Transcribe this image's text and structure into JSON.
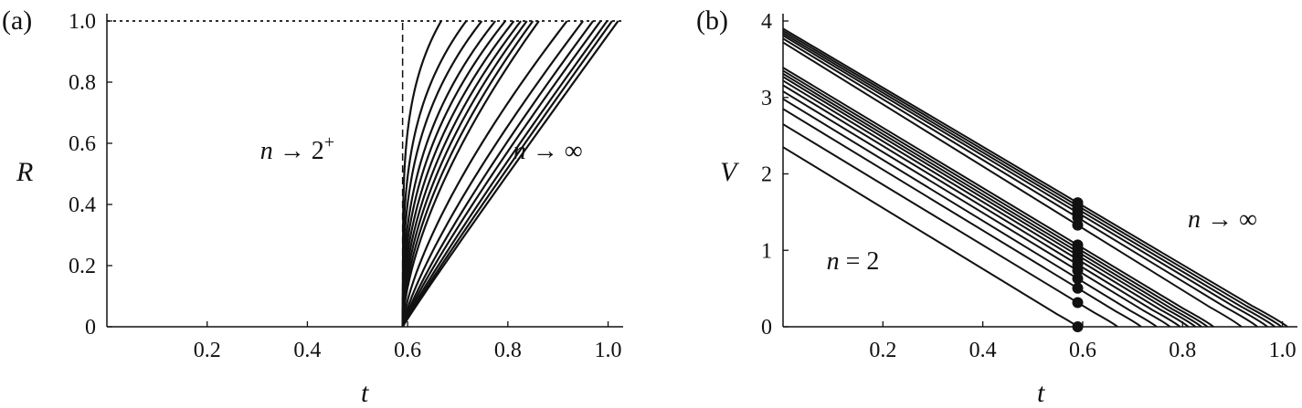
{
  "chart_data": [
    {
      "panel": "(a)",
      "type": "line",
      "xlabel": "t",
      "ylabel": "R",
      "xlim": [
        0,
        1.03
      ],
      "ylim": [
        0,
        1.0
      ],
      "xticks": [
        0.2,
        0.4,
        0.6,
        0.8,
        1.0
      ],
      "xtick_labels": [
        "0.2",
        "0.4",
        "0.6",
        "0.8",
        "1.0"
      ],
      "yticks": [
        0,
        0.2,
        0.4,
        0.6,
        0.8,
        1.0
      ],
      "ytick_labels": [
        "0",
        "0.2",
        "0.4",
        "0.6",
        "0.8",
        "1.0"
      ],
      "grid": false,
      "legend": "none",
      "annotations": [
        {
          "pre": "n",
          "mid": " → 2",
          "sup": "+",
          "x": 0.38,
          "y": 0.55
        },
        {
          "pre": "n",
          "mid": " → ∞",
          "sup": "",
          "x": 0.88,
          "y": 0.55
        }
      ],
      "dashed_vertical": {
        "x": 0.59,
        "y_from": 0,
        "y_to": 1.0
      },
      "dotted_horizontal": {
        "y": 1.0,
        "x_from": 0,
        "x_to": 1.03
      },
      "curve_start": {
        "t": 0.59,
        "R": 0
      },
      "series": [
        {
          "end_t": 0.667,
          "exponent": 0.22
        },
        {
          "end_t": 0.717,
          "exponent": 0.28
        },
        {
          "end_t": 0.748,
          "exponent": 0.33
        },
        {
          "end_t": 0.775,
          "exponent": 0.38
        },
        {
          "end_t": 0.795,
          "exponent": 0.42
        },
        {
          "end_t": 0.812,
          "exponent": 0.46
        },
        {
          "end_t": 0.826,
          "exponent": 0.5
        },
        {
          "end_t": 0.838,
          "exponent": 0.54
        },
        {
          "end_t": 0.85,
          "exponent": 0.58
        },
        {
          "end_t": 0.862,
          "exponent": 0.62
        },
        {
          "end_t": 0.918,
          "exponent": 0.7
        },
        {
          "end_t": 0.95,
          "exponent": 0.78
        },
        {
          "end_t": 0.97,
          "exponent": 0.84
        },
        {
          "end_t": 0.985,
          "exponent": 0.88
        },
        {
          "end_t": 0.998,
          "exponent": 0.92
        },
        {
          "end_t": 1.008,
          "exponent": 0.95
        },
        {
          "end_t": 1.02,
          "exponent": 0.97
        }
      ]
    },
    {
      "panel": "(b)",
      "type": "line",
      "xlabel": "t",
      "ylabel": "V",
      "xlim": [
        0,
        1.03
      ],
      "ylim": [
        0,
        4.0
      ],
      "xticks": [
        0.2,
        0.4,
        0.6,
        0.8,
        1.0
      ],
      "xtick_labels": [
        "0.2",
        "0.4",
        "0.6",
        "0.8",
        "1.0"
      ],
      "yticks": [
        0,
        1,
        2,
        3,
        4
      ],
      "ytick_labels": [
        "0",
        "1",
        "2",
        "3",
        "4"
      ],
      "grid": false,
      "legend": "none",
      "annotations": [
        {
          "pre": "n",
          "mid": " = 2",
          "sup": "",
          "x": 0.14,
          "y": 0.75
        },
        {
          "pre": "n",
          "mid": " → ∞",
          "sup": "",
          "x": 0.88,
          "y": 1.3
        }
      ],
      "marker_t": 0.59,
      "series": [
        {
          "v0": 2.35,
          "end_t": 0.59
        },
        {
          "v0": 2.65,
          "end_t": 0.67
        },
        {
          "v0": 2.85,
          "end_t": 0.717
        },
        {
          "v0": 2.98,
          "end_t": 0.748
        },
        {
          "v0": 3.08,
          "end_t": 0.775
        },
        {
          "v0": 3.16,
          "end_t": 0.795
        },
        {
          "v0": 3.22,
          "end_t": 0.812
        },
        {
          "v0": 3.27,
          "end_t": 0.826
        },
        {
          "v0": 3.31,
          "end_t": 0.838
        },
        {
          "v0": 3.35,
          "end_t": 0.85
        },
        {
          "v0": 3.39,
          "end_t": 0.862
        },
        {
          "v0": 3.72,
          "end_t": 0.918
        },
        {
          "v0": 3.77,
          "end_t": 0.95
        },
        {
          "v0": 3.81,
          "end_t": 0.97
        },
        {
          "v0": 3.84,
          "end_t": 0.985
        },
        {
          "v0": 3.87,
          "end_t": 0.998
        },
        {
          "v0": 3.9,
          "end_t": 1.01
        }
      ]
    }
  ]
}
